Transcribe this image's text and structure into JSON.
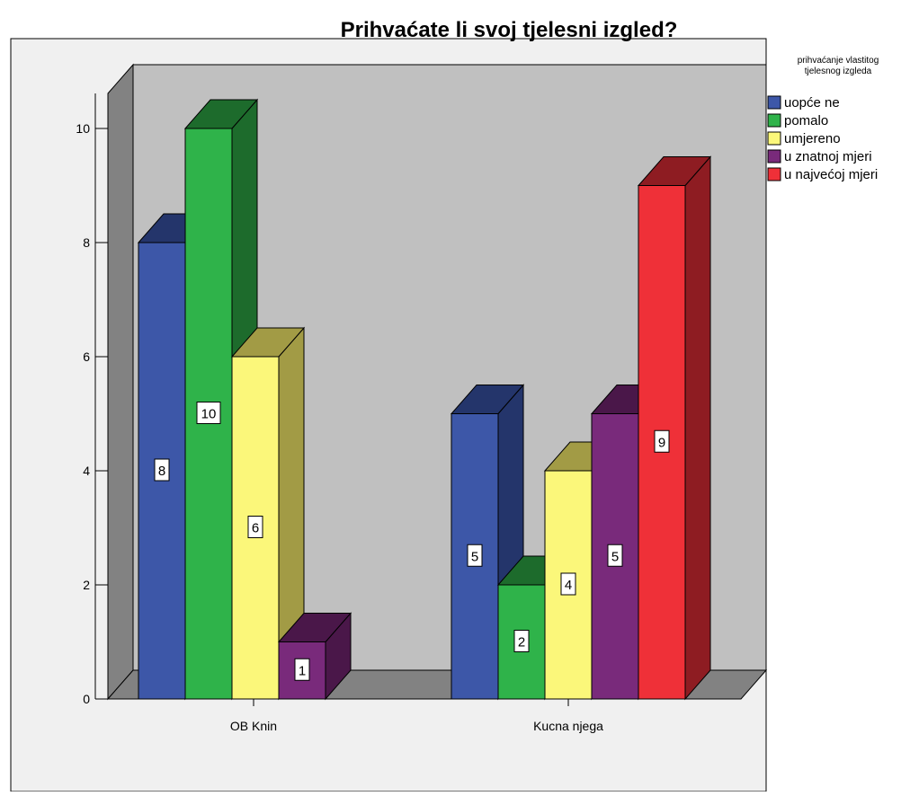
{
  "chart_data": {
    "type": "bar",
    "title": "Prihvaćate li svoj tjelesni izgled?",
    "xlabel": "",
    "ylabel": "",
    "categories": [
      "OB Knin",
      "Kucna njega"
    ],
    "ylim": [
      0,
      10.5
    ],
    "yticks": [
      0,
      2,
      4,
      6,
      8,
      10
    ],
    "legend": {
      "title_lines": [
        "prihvaćanje vlastitog",
        "tjelesnog izgleda"
      ],
      "placement": "right"
    },
    "series": [
      {
        "name": "uopće ne",
        "values": [
          8,
          5
        ],
        "color": "#3d57a8",
        "shade": "#24356b"
      },
      {
        "name": "pomalo",
        "values": [
          10,
          2
        ],
        "color": "#2fb34a",
        "shade": "#1d6b2c"
      },
      {
        "name": "umjereno",
        "values": [
          6,
          4
        ],
        "color": "#fbf77a",
        "shade": "#a29b45"
      },
      {
        "name": "u znatnoj mjeri",
        "values": [
          1,
          5
        ],
        "color": "#792a7b",
        "shade": "#4a1749"
      },
      {
        "name": "u najvećoj mjeri",
        "values": [
          null,
          9
        ],
        "color": "#ef3038",
        "shade": "#8e1c22"
      }
    ],
    "grid": false,
    "style": "3d"
  }
}
